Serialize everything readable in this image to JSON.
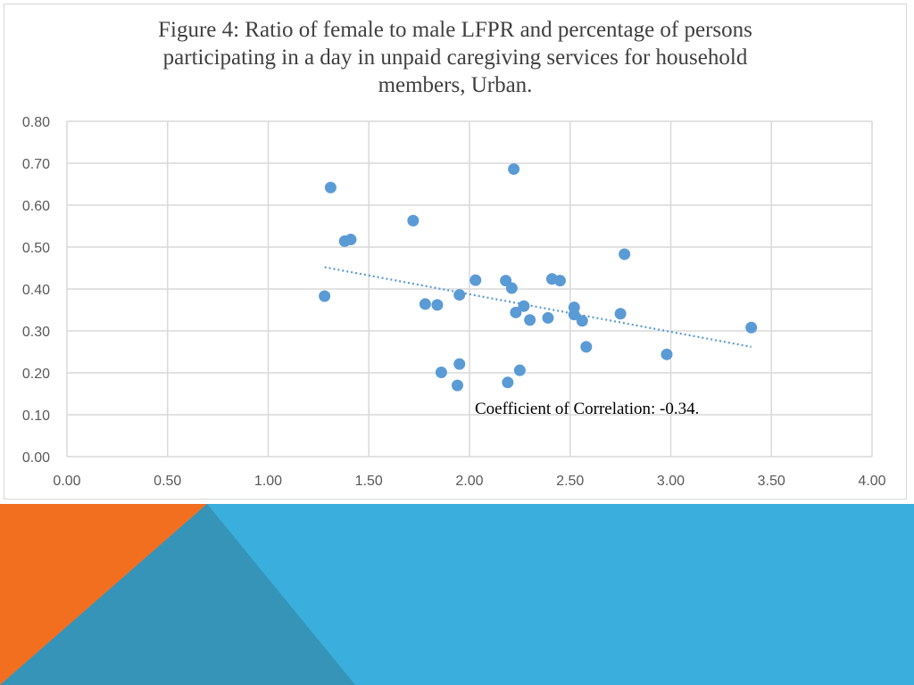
{
  "theme": {
    "band_blue": "#3aaedc",
    "band_orange": "#f36f20",
    "band_teal": "#3594b8",
    "point_color": "#5b9bd5",
    "grid_color": "#d9d9d9",
    "axis_text_color": "#595959"
  },
  "chart_data": {
    "type": "scatter",
    "title_lines": [
      "Figure 4: Ratio of female to male LFPR and percentage of persons",
      "participating  in a day in unpaid caregiving  services for household",
      "members, Urban."
    ],
    "xlabel": "",
    "ylabel": "",
    "xlim": [
      0,
      4
    ],
    "ylim": [
      0,
      0.8
    ],
    "x_ticks": [
      0,
      0.5,
      1,
      1.5,
      2,
      2.5,
      3,
      3.5,
      4
    ],
    "x_tick_labels": [
      "0.00",
      "0.50",
      "1.00",
      "1.50",
      "2.00",
      "2.50",
      "3.00",
      "3.50",
      "4.00"
    ],
    "y_ticks": [
      0,
      0.1,
      0.2,
      0.3,
      0.4,
      0.5,
      0.6,
      0.7,
      0.8
    ],
    "y_tick_labels": [
      "0.00",
      "0.10",
      "0.20",
      "0.30",
      "0.40",
      "0.50",
      "0.60",
      "0.70",
      "0.80"
    ],
    "grid": true,
    "points": [
      {
        "x": 1.28,
        "y": 0.383
      },
      {
        "x": 1.31,
        "y": 0.642
      },
      {
        "x": 1.38,
        "y": 0.514
      },
      {
        "x": 1.41,
        "y": 0.518
      },
      {
        "x": 1.72,
        "y": 0.563
      },
      {
        "x": 1.78,
        "y": 0.364
      },
      {
        "x": 1.84,
        "y": 0.362
      },
      {
        "x": 1.86,
        "y": 0.201
      },
      {
        "x": 1.94,
        "y": 0.17
      },
      {
        "x": 1.95,
        "y": 0.386
      },
      {
        "x": 1.95,
        "y": 0.221
      },
      {
        "x": 2.03,
        "y": 0.421
      },
      {
        "x": 2.18,
        "y": 0.42
      },
      {
        "x": 2.19,
        "y": 0.177
      },
      {
        "x": 2.21,
        "y": 0.402
      },
      {
        "x": 2.22,
        "y": 0.686
      },
      {
        "x": 2.23,
        "y": 0.344
      },
      {
        "x": 2.25,
        "y": 0.206
      },
      {
        "x": 2.27,
        "y": 0.359
      },
      {
        "x": 2.3,
        "y": 0.326
      },
      {
        "x": 2.39,
        "y": 0.331
      },
      {
        "x": 2.41,
        "y": 0.424
      },
      {
        "x": 2.45,
        "y": 0.42
      },
      {
        "x": 2.52,
        "y": 0.356
      },
      {
        "x": 2.52,
        "y": 0.339
      },
      {
        "x": 2.56,
        "y": 0.324
      },
      {
        "x": 2.58,
        "y": 0.262
      },
      {
        "x": 2.75,
        "y": 0.341
      },
      {
        "x": 2.77,
        "y": 0.483
      },
      {
        "x": 2.98,
        "y": 0.244
      },
      {
        "x": 3.4,
        "y": 0.308
      }
    ],
    "trendline": {
      "x": [
        1.28,
        3.4
      ],
      "y": [
        0.452,
        0.262
      ],
      "style": "dotted"
    },
    "annotation": "Coefficient of Correlation: -0.34."
  }
}
